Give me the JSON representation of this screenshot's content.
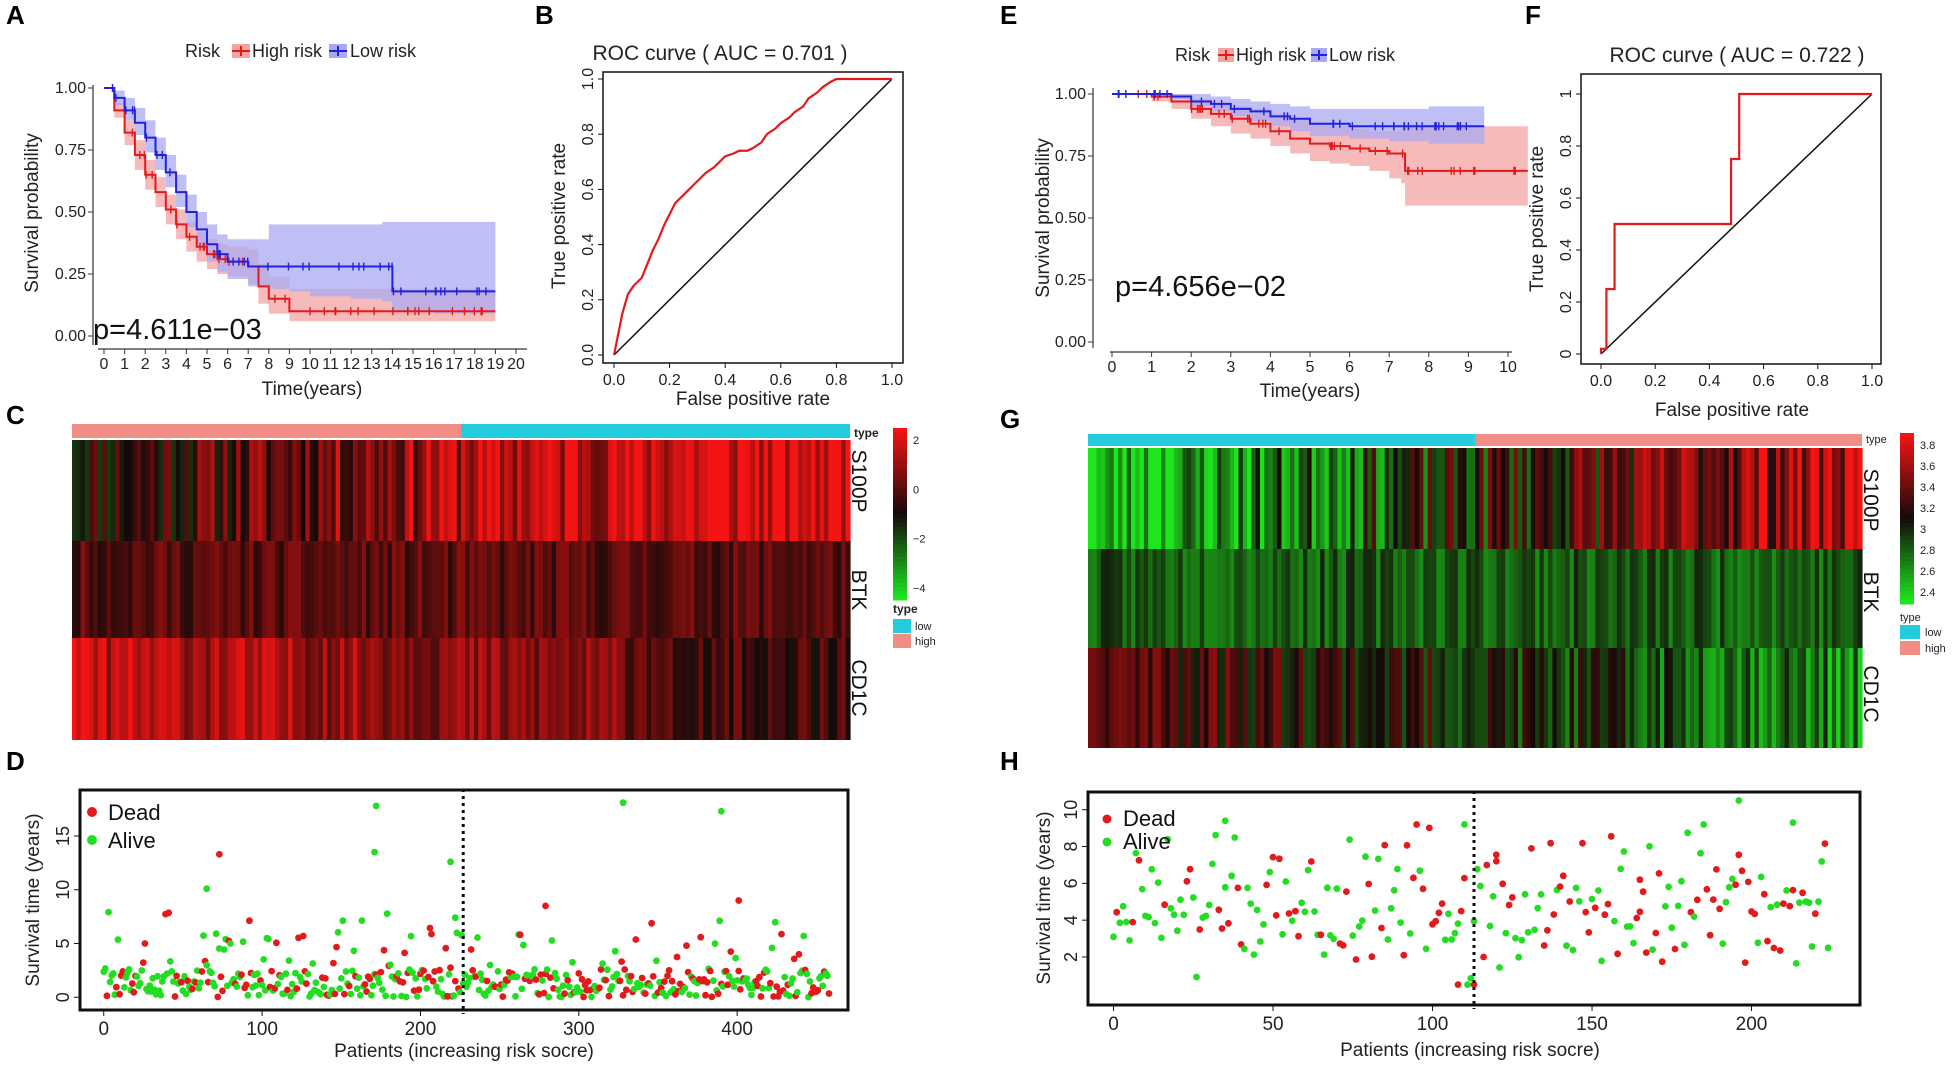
{
  "colors": {
    "high": "#e31a1c",
    "low": "#2222dd",
    "high_band": "#f4a3a3",
    "low_band": "#a9a9f2",
    "dead": "#e31a1c",
    "alive": "#22dd22",
    "type_low": "#22ccdd",
    "type_high": "#f08e86"
  },
  "panels": [
    {
      "id": "A",
      "label": "A"
    },
    {
      "id": "B",
      "label": "B"
    },
    {
      "id": "C",
      "label": "C"
    },
    {
      "id": "D",
      "label": "D"
    },
    {
      "id": "E",
      "label": "E"
    },
    {
      "id": "F",
      "label": "F"
    },
    {
      "id": "G",
      "label": "G"
    },
    {
      "id": "H",
      "label": "H"
    }
  ],
  "heatmap_legend": {
    "type_title": "type",
    "low": "low",
    "high": "high"
  },
  "chart_data": [
    {
      "id": "A",
      "type": "line",
      "subtype": "kaplan-meier",
      "legend_title": "Risk",
      "legend": [
        "High risk",
        "Low risk"
      ],
      "xlabel": "Time(years)",
      "ylabel": "Survival probability",
      "xlim": [
        0,
        20
      ],
      "ylim": [
        0,
        1
      ],
      "x_ticks": [
        "0",
        "1",
        "2",
        "3",
        "4",
        "5",
        "6",
        "7",
        "8",
        "9",
        "10",
        "11",
        "12",
        "13",
        "14",
        "15",
        "16",
        "17",
        "18",
        "19",
        "20"
      ],
      "y_ticks": [
        "0.00",
        "0.25",
        "0.50",
        "0.75",
        "1.00"
      ],
      "annotation": "p=4.611e−03",
      "series": [
        {
          "name": "High risk",
          "x": [
            0,
            0.5,
            1,
            1.5,
            2,
            2.5,
            3,
            3.5,
            4,
            4.5,
            5,
            5.5,
            6,
            7,
            7.5,
            8,
            9,
            10,
            12,
            14,
            16,
            18,
            19
          ],
          "y": [
            1,
            0.91,
            0.82,
            0.73,
            0.65,
            0.58,
            0.51,
            0.45,
            0.4,
            0.36,
            0.33,
            0.31,
            0.3,
            0.28,
            0.2,
            0.15,
            0.1,
            0.1,
            0.1,
            0.1,
            0.1,
            0.1,
            0.1
          ],
          "lower": [
            1,
            0.88,
            0.77,
            0.67,
            0.59,
            0.52,
            0.45,
            0.39,
            0.34,
            0.3,
            0.27,
            0.25,
            0.24,
            0.21,
            0.13,
            0.09,
            0.06,
            0.06,
            0.06,
            0.06,
            0.06,
            0.06,
            0.06
          ],
          "upper": [
            1,
            0.94,
            0.87,
            0.79,
            0.71,
            0.64,
            0.57,
            0.51,
            0.46,
            0.42,
            0.39,
            0.37,
            0.36,
            0.35,
            0.29,
            0.24,
            0.19,
            0.19,
            0.19,
            0.19,
            0.19,
            0.19,
            0.19
          ]
        },
        {
          "name": "Low risk",
          "x": [
            0,
            0.5,
            1,
            1.5,
            2,
            2.5,
            3,
            3.5,
            4,
            4.5,
            5,
            5.5,
            6,
            7,
            8,
            9,
            10,
            12,
            13.5,
            14,
            16,
            18,
            19
          ],
          "y": [
            1,
            0.96,
            0.91,
            0.86,
            0.8,
            0.73,
            0.66,
            0.58,
            0.5,
            0.43,
            0.37,
            0.33,
            0.3,
            0.28,
            0.28,
            0.28,
            0.28,
            0.28,
            0.28,
            0.18,
            0.18,
            0.18,
            0.18
          ],
          "lower": [
            1,
            0.93,
            0.87,
            0.81,
            0.74,
            0.67,
            0.6,
            0.52,
            0.44,
            0.36,
            0.3,
            0.26,
            0.23,
            0.2,
            0.19,
            0.18,
            0.16,
            0.15,
            0.14,
            0.1,
            0.09,
            0.09,
            0.09
          ],
          "upper": [
            1,
            0.99,
            0.96,
            0.92,
            0.87,
            0.8,
            0.73,
            0.65,
            0.57,
            0.5,
            0.45,
            0.41,
            0.39,
            0.39,
            0.45,
            0.45,
            0.45,
            0.45,
            0.46,
            0.46,
            0.46,
            0.46,
            0.46
          ]
        }
      ]
    },
    {
      "id": "B",
      "type": "line",
      "subtype": "roc",
      "title": "ROC curve ( AUC = 0.701 )",
      "xlabel": "False positive rate",
      "ylabel": "True positive rate",
      "xlim": [
        0,
        1
      ],
      "ylim": [
        0,
        1
      ],
      "x_ticks": [
        "0.0",
        "0.2",
        "0.4",
        "0.6",
        "0.8",
        "1.0"
      ],
      "y_ticks": [
        "0.0",
        "0.2",
        "0.4",
        "0.6",
        "0.8",
        "1.0"
      ],
      "series": [
        {
          "name": "ROC",
          "x": [
            0,
            0.01,
            0.02,
            0.03,
            0.05,
            0.07,
            0.1,
            0.12,
            0.14,
            0.16,
            0.18,
            0.2,
            0.22,
            0.25,
            0.28,
            0.3,
            0.33,
            0.36,
            0.38,
            0.4,
            0.43,
            0.45,
            0.48,
            0.5,
            0.53,
            0.55,
            0.58,
            0.6,
            0.63,
            0.65,
            0.68,
            0.7,
            0.73,
            0.75,
            0.78,
            0.8,
            0.85,
            0.9,
            0.95,
            1.0
          ],
          "y": [
            0,
            0.05,
            0.1,
            0.15,
            0.22,
            0.25,
            0.28,
            0.33,
            0.38,
            0.42,
            0.47,
            0.51,
            0.55,
            0.58,
            0.61,
            0.63,
            0.66,
            0.68,
            0.7,
            0.72,
            0.73,
            0.74,
            0.74,
            0.75,
            0.77,
            0.8,
            0.82,
            0.84,
            0.86,
            0.88,
            0.9,
            0.93,
            0.95,
            0.97,
            0.99,
            1,
            1,
            1,
            1,
            1
          ]
        }
      ]
    },
    {
      "id": "C",
      "type": "heatmap",
      "rows": [
        "S100P",
        "BTK",
        "CD1C"
      ],
      "scale_ticks": [
        "2",
        "0",
        "−2",
        "−4"
      ],
      "group_order": [
        "high",
        "low"
      ],
      "group_split": 0.5
    },
    {
      "id": "D",
      "type": "scatter",
      "xlabel": "Patients (increasing risk socre)",
      "ylabel": "Survival time (years)",
      "xlim": [
        -15,
        470
      ],
      "ylim": [
        -1,
        19
      ],
      "x_ticks": [
        "0",
        "100",
        "200",
        "300",
        "400"
      ],
      "y_ticks": [
        "0",
        "5",
        "10",
        "15"
      ],
      "legend": [
        "Dead",
        "Alive"
      ],
      "cutoff": 227,
      "n": 459,
      "highlights": [
        {
          "x": 73,
          "y": 13.3,
          "status": "Dead"
        },
        {
          "x": 65,
          "y": 10.1,
          "status": "Alive"
        },
        {
          "x": 172,
          "y": 17.8,
          "status": "Alive"
        },
        {
          "x": 171,
          "y": 13.5,
          "status": "Alive"
        },
        {
          "x": 219,
          "y": 12.6,
          "status": "Alive"
        },
        {
          "x": 328,
          "y": 18.1,
          "status": "Alive"
        },
        {
          "x": 390,
          "y": 17.3,
          "status": "Alive"
        },
        {
          "x": 279,
          "y": 8.5,
          "status": "Dead"
        },
        {
          "x": 401,
          "y": 9.0,
          "status": "Dead"
        },
        {
          "x": 222,
          "y": 7.4,
          "status": "Alive"
        }
      ]
    },
    {
      "id": "E",
      "type": "line",
      "subtype": "kaplan-meier",
      "legend_title": "Risk",
      "legend": [
        "High risk",
        "Low risk"
      ],
      "xlabel": "Time(years)",
      "ylabel": "Survival probability",
      "xlim": [
        0,
        10
      ],
      "ylim": [
        0,
        1
      ],
      "x_ticks": [
        "0",
        "1",
        "2",
        "3",
        "4",
        "5",
        "6",
        "7",
        "8",
        "9",
        "10"
      ],
      "y_ticks": [
        "0.00",
        "0.25",
        "0.50",
        "0.75",
        "1.00"
      ],
      "annotation": "p=4.656e−02",
      "series": [
        {
          "name": "High risk",
          "x": [
            0,
            1,
            1.5,
            2,
            2.5,
            3,
            3.5,
            4,
            4.5,
            5,
            5.5,
            6,
            6.5,
            7,
            7.3,
            7.4,
            8,
            9,
            10.5
          ],
          "y": [
            1,
            0.99,
            0.97,
            0.94,
            0.92,
            0.9,
            0.88,
            0.85,
            0.82,
            0.8,
            0.79,
            0.78,
            0.77,
            0.76,
            0.76,
            0.69,
            0.69,
            0.69,
            0.69
          ],
          "lower": [
            1,
            0.97,
            0.94,
            0.9,
            0.87,
            0.84,
            0.82,
            0.79,
            0.76,
            0.73,
            0.72,
            0.71,
            0.69,
            0.66,
            0.64,
            0.55,
            0.55,
            0.55,
            0.55
          ],
          "upper": [
            1,
            1,
            1,
            0.98,
            0.96,
            0.95,
            0.94,
            0.92,
            0.9,
            0.88,
            0.87,
            0.86,
            0.85,
            0.85,
            0.86,
            0.87,
            0.87,
            0.87,
            0.87
          ]
        },
        {
          "name": "Low risk",
          "x": [
            0,
            1,
            1.5,
            2,
            2.5,
            3,
            3.5,
            4,
            4.5,
            5,
            6,
            7,
            8,
            9,
            9.4
          ],
          "y": [
            1,
            1,
            0.99,
            0.97,
            0.96,
            0.94,
            0.93,
            0.91,
            0.9,
            0.88,
            0.87,
            0.87,
            0.87,
            0.87,
            0.87
          ],
          "lower": [
            1,
            1,
            0.98,
            0.95,
            0.93,
            0.91,
            0.89,
            0.87,
            0.85,
            0.83,
            0.82,
            0.81,
            0.8,
            0.8,
            0.8
          ],
          "upper": [
            1,
            1,
            1,
            1,
            0.99,
            0.98,
            0.97,
            0.96,
            0.95,
            0.94,
            0.94,
            0.94,
            0.95,
            0.95,
            0.95
          ]
        }
      ]
    },
    {
      "id": "F",
      "type": "line",
      "subtype": "roc",
      "title": "ROC curve ( AUC = 0.722 )",
      "xlabel": "False positive rate",
      "ylabel": "True positive rate",
      "xlim": [
        0,
        1
      ],
      "ylim": [
        0,
        1
      ],
      "x_ticks": [
        "0.0",
        "0.2",
        "0.4",
        "0.6",
        "0.8",
        "1.0"
      ],
      "y_ticks": [
        "0",
        "0.2",
        "0.4",
        "0.6",
        "0.8",
        "1"
      ],
      "series": [
        {
          "name": "ROC",
          "x": [
            0,
            0,
            0.02,
            0.02,
            0.05,
            0.05,
            0.48,
            0.48,
            0.51,
            0.51,
            1.0
          ],
          "y": [
            0,
            0.02,
            0.02,
            0.25,
            0.25,
            0.5,
            0.5,
            0.75,
            0.75,
            1,
            1
          ]
        }
      ]
    },
    {
      "id": "G",
      "type": "heatmap",
      "rows": [
        "S100P",
        "BTK",
        "CD1C"
      ],
      "scale_ticks": [
        "3.8",
        "3.6",
        "3.4",
        "3.2",
        "3",
        "2.8",
        "2.6",
        "2.4"
      ],
      "group_order": [
        "low",
        "high"
      ],
      "group_split": 0.5
    },
    {
      "id": "H",
      "type": "scatter",
      "xlabel": "Patients (increasing risk socre)",
      "ylabel": "Survival time (years)",
      "xlim": [
        -8,
        234
      ],
      "ylim": [
        -0.5,
        10.8
      ],
      "x_ticks": [
        "0",
        "50",
        "100",
        "150",
        "200"
      ],
      "y_ticks": [
        "2",
        "4",
        "6",
        "8",
        "10"
      ],
      "legend": [
        "Dead",
        "Alive"
      ],
      "cutoff": 113,
      "n": 225,
      "highlights": [
        {
          "x": 196,
          "y": 10.5,
          "status": "Alive"
        },
        {
          "x": 35,
          "y": 9.4,
          "status": "Alive"
        },
        {
          "x": 110,
          "y": 9.2,
          "status": "Alive"
        },
        {
          "x": 213,
          "y": 9.3,
          "status": "Alive"
        },
        {
          "x": 120,
          "y": 7.2,
          "status": "Dead"
        },
        {
          "x": 165,
          "y": 6.2,
          "status": "Dead"
        },
        {
          "x": 108,
          "y": 0.5,
          "status": "Dead"
        },
        {
          "x": 113,
          "y": 0.5,
          "status": "Dead"
        }
      ]
    }
  ]
}
